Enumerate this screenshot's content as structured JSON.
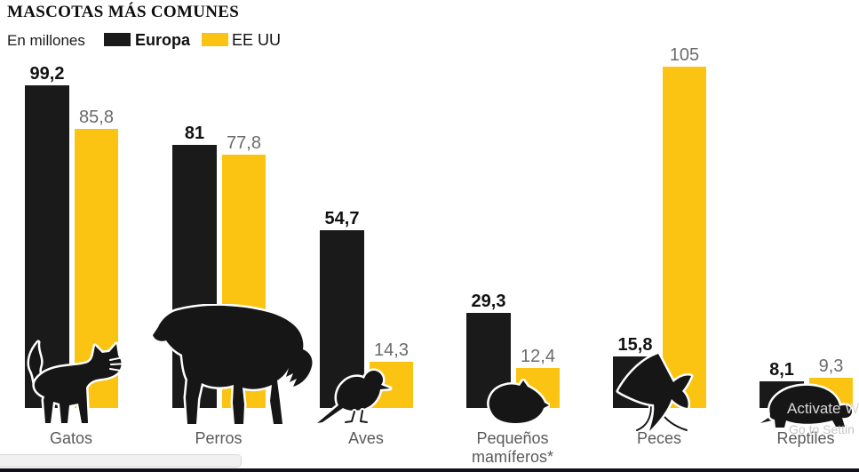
{
  "header": {
    "title": "MASCOTAS MÁS COMUNES",
    "subtitle": "En millones"
  },
  "chart_data": {
    "type": "bar",
    "title": "MASCOTAS MÁS COMUNES",
    "units": "En millones",
    "categories": [
      "Gatos",
      "Perros",
      "Aves",
      "Pequeños mamíferos*",
      "Peces",
      "Reptiles"
    ],
    "series": [
      {
        "name": "Europa",
        "color": "#1A1A1A",
        "values": [
          99.2,
          81,
          54.7,
          29.3,
          15.8,
          8.1
        ],
        "display": [
          "99,2",
          "81",
          "54,7",
          "29,3",
          "15,8",
          "8,1"
        ]
      },
      {
        "name": "EE UU",
        "color": "#FBC412",
        "values": [
          85.8,
          77.8,
          14.3,
          12.4,
          105,
          9.3
        ],
        "display": [
          "85,8",
          "77,8",
          "14,3",
          "12,4",
          "105",
          "9,3"
        ]
      }
    ],
    "ylim": [
      0,
      105
    ],
    "grid": false,
    "legend_position": "top",
    "value_labels": "above-bars",
    "category_icons": [
      "cat-icon",
      "dog-icon",
      "bird-icon",
      "hamster-icon",
      "fish-icon",
      "turtle-icon"
    ]
  },
  "watermark": {
    "line1": "Activate W",
    "line2": "Go to Settin"
  },
  "colors": {
    "europa_bar": "#1A1A1A",
    "eeuu_bar": "#FBC412",
    "value_label_eeuu": "#6A6B6D",
    "category_label": "#595A5C"
  }
}
